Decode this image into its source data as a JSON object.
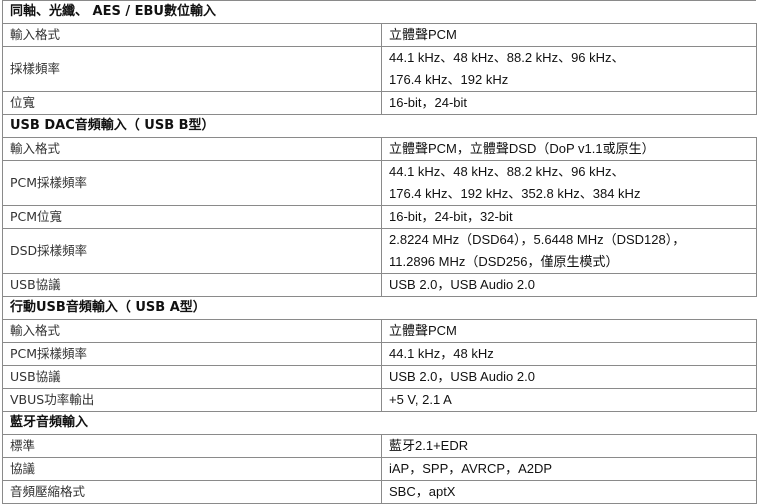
{
  "sections": [
    {
      "title": "同軸、光纖、 AES / EBU數位輸入",
      "rows": [
        {
          "label": "輸入格式",
          "value": [
            "立體聲PCM"
          ]
        },
        {
          "label": "採樣頻率",
          "value": [
            "44.1 kHz、48 kHz、88.2 kHz、96 kHz、",
            "176.4 kHz、192 kHz"
          ]
        },
        {
          "label": "位寬",
          "value": [
            "16-bit，24-bit"
          ]
        }
      ]
    },
    {
      "title": "USB DAC音頻輸入（ USB B型）",
      "rows": [
        {
          "label": "輸入格式",
          "value": [
            "立體聲PCM，立體聲DSD（DoP v1.1或原生）"
          ]
        },
        {
          "label": "PCM採樣頻率",
          "value": [
            "44.1 kHz、48 kHz、88.2 kHz、96 kHz、",
            "176.4 kHz、192 kHz、352.8 kHz、384 kHz"
          ]
        },
        {
          "label": "PCM位寬",
          "value": [
            "16-bit，24-bit，32-bit"
          ]
        },
        {
          "label": "DSD採樣頻率",
          "value": [
            "2.8224 MHz（DSD64），5.6448 MHz（DSD128），",
            "11.2896 MHz（DSD256，僅原生模式）"
          ]
        },
        {
          "label": "USB協議",
          "value": [
            "USB 2.0，USB Audio 2.0"
          ]
        }
      ]
    },
    {
      "title": "行動USB音頻輸入（ USB A型）",
      "rows": [
        {
          "label": "輸入格式",
          "value": [
            "立體聲PCM"
          ]
        },
        {
          "label": "PCM採樣頻率",
          "value": [
            "44.1 kHz，48 kHz"
          ]
        },
        {
          "label": "USB協議",
          "value": [
            "USB 2.0，USB Audio 2.0"
          ]
        },
        {
          "label": "VBUS功率輸出",
          "value": [
            "+5 V, 2.1 A"
          ]
        }
      ]
    },
    {
      "title": "藍牙音頻輸入",
      "rows": [
        {
          "label": "標準",
          "value": [
            "藍牙2.1+EDR"
          ]
        },
        {
          "label": "協議",
          "value": [
            "iAP，SPP，AVRCP，A2DP"
          ]
        },
        {
          "label": "音頻壓縮格式",
          "value": [
            "SBC，aptX"
          ]
        }
      ]
    }
  ]
}
